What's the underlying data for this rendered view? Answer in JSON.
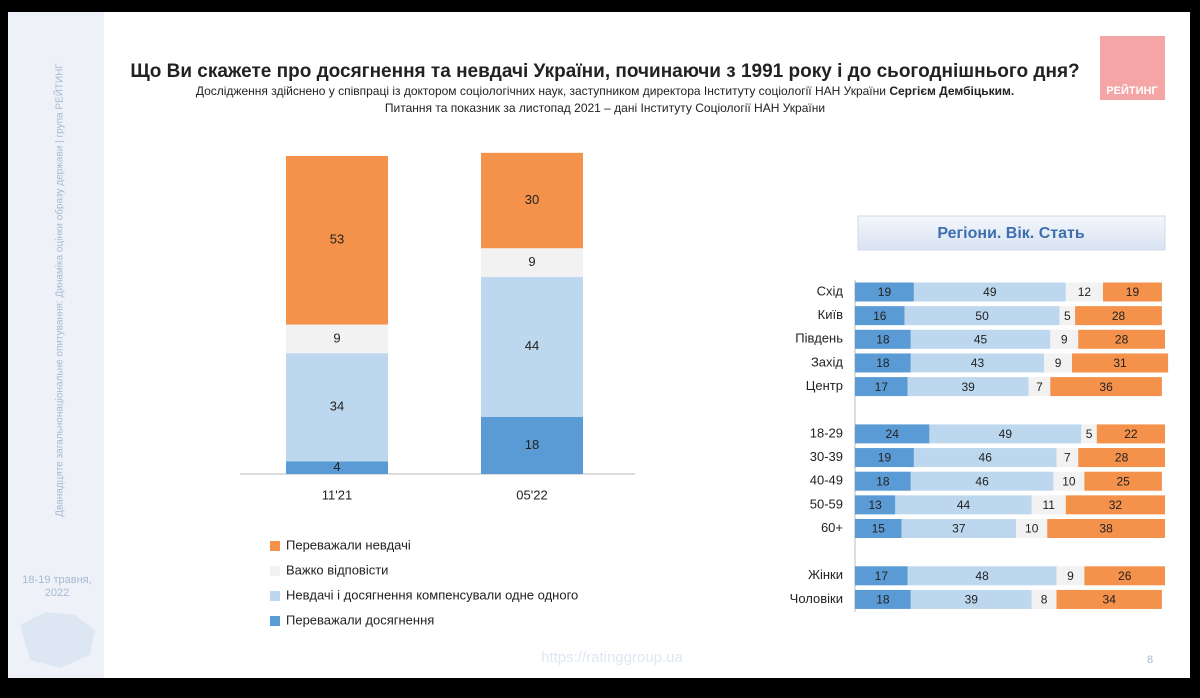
{
  "header": {
    "title": "Що Ви скажете про досягнення та невдачі України, починаючи з 1991 року і до сьогоднішнього дня?",
    "subtitle": "Дослідження здійснено у співпраці із доктором соціологічних наук, заступником директора Інституту соціології НАН України",
    "subtitle_bold": "Сергієм Дембіцьким.",
    "note": "Питання та показник за листопад 2021 – дані Інституту Соціології НАН України",
    "logo": "РЕЙТИНГ"
  },
  "sidebar": {
    "text": "Дванадцяте загальнонаціональне опитування: Динаміка оцінки образу держави | група РЕЙТИНГ",
    "date_line1": "18-19 травня,",
    "date_line2": "2022"
  },
  "footer": {
    "url": "https://ratinggroup.ua",
    "page": "8"
  },
  "chart_data": [
    {
      "type": "stacked-bar",
      "categories": [
        "11'21",
        "05'22"
      ],
      "ylim": [
        0,
        100
      ],
      "series": [
        {
          "name": "Переважали досягнення",
          "color": "#5b9bd5",
          "values": [
            4,
            18
          ]
        },
        {
          "name": "Невдачі і досягнення компенсували одне одного",
          "color": "#bdd7ee",
          "values": [
            34,
            44
          ]
        },
        {
          "name": "Важко відповісти",
          "color": "#f2f2f2",
          "values": [
            9,
            9
          ]
        },
        {
          "name": "Переважали невдачі",
          "color": "#f4914a",
          "values": [
            53,
            30
          ]
        }
      ]
    },
    {
      "type": "stacked-hbar",
      "title": "Регіони. Вік. Стать",
      "xlim": [
        0,
        100
      ],
      "categories": [
        "Схід",
        "Київ",
        "Південь",
        "Захід",
        "Центр",
        null,
        "18-29",
        "30-39",
        "40-49",
        "50-59",
        "60+",
        null,
        "Жінки",
        "Чоловіки"
      ],
      "series": [
        {
          "color": "#5b9bd5",
          "values": [
            19,
            16,
            18,
            18,
            17,
            null,
            24,
            19,
            18,
            13,
            15,
            null,
            17,
            18
          ]
        },
        {
          "color": "#bdd7ee",
          "values": [
            49,
            50,
            45,
            43,
            39,
            null,
            49,
            46,
            46,
            44,
            37,
            null,
            48,
            39
          ]
        },
        {
          "color": "#f2f2f2",
          "values": [
            12,
            5,
            9,
            9,
            7,
            null,
            5,
            7,
            10,
            11,
            10,
            null,
            9,
            8
          ]
        },
        {
          "color": "#f4914a",
          "values": [
            19,
            28,
            28,
            31,
            36,
            null,
            22,
            28,
            25,
            32,
            38,
            null,
            26,
            34
          ]
        }
      ]
    }
  ]
}
